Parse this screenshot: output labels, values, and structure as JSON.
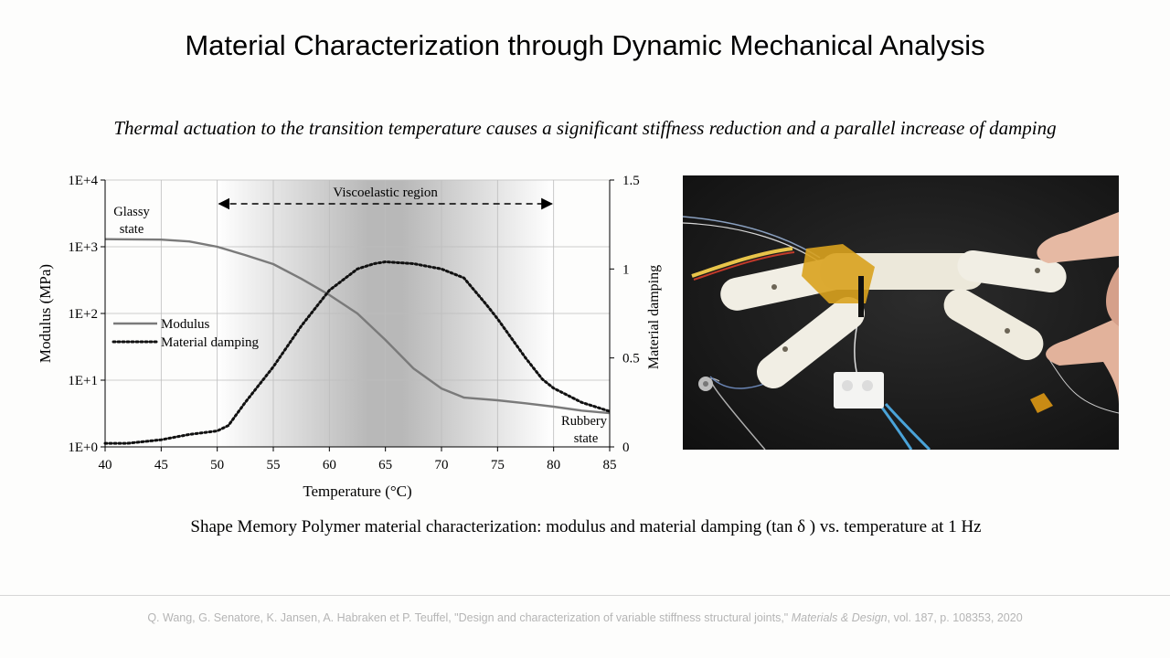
{
  "slide": {
    "title": "Material Characterization through Dynamic Mechanical Analysis",
    "subtitle": "Thermal actuation to the transition temperature causes a significant stiffness reduction and a parallel increase of damping",
    "caption": "Shape Memory Polymer material characterization: modulus and material damping (tan δ ) vs. temperature at 1 Hz",
    "citation": {
      "prefix": "Q. Wang, G. Senatore, K. Jansen, A. Habraken et P. Teuffel, \"Design and characterization of variable stiffness structural joints,\" ",
      "journal": "Materials & Design",
      "suffix": ", vol. 187, p. 108353, 2020"
    }
  },
  "chart_data": {
    "type": "line",
    "xlabel": "Temperature (°C)",
    "ylabel": "Modulus (MPa)",
    "y2label": "Material damping",
    "xlim": [
      40,
      85
    ],
    "x_ticks": [
      "40",
      "45",
      "50",
      "55",
      "60",
      "65",
      "70",
      "75",
      "80",
      "85"
    ],
    "ylim_log": [
      0,
      4
    ],
    "y_ticks": [
      "1E+0",
      "1E+1",
      "1E+2",
      "1E+3",
      "1E+4"
    ],
    "y2lim": [
      0,
      1.5
    ],
    "y2_ticks": [
      "0",
      "0.5",
      "1",
      "1.5"
    ],
    "grid": true,
    "legend_position": "middle-left",
    "annotations": {
      "region": "Viscoelastic region",
      "region_range": [
        50,
        80
      ],
      "glassy": [
        "Glassy",
        "state"
      ],
      "rubbery": [
        "Rubbery",
        "state"
      ]
    },
    "series": [
      {
        "name": "Modulus",
        "axis": "left-log",
        "color": "#7a7a7a",
        "x": [
          40,
          45,
          47.5,
          50,
          52.5,
          55,
          57.5,
          60,
          62.5,
          65,
          67.5,
          70,
          72,
          75,
          77.5,
          80,
          82.5,
          85
        ],
        "values": [
          1300,
          1280,
          1200,
          1000,
          750,
          550,
          330,
          190,
          100,
          40,
          15,
          7.5,
          5.5,
          5,
          4.5,
          4,
          3.5,
          3.2
        ]
      },
      {
        "name": "Material damping",
        "axis": "right",
        "color": "#111111",
        "x": [
          40,
          42,
          45,
          47.5,
          50,
          51,
          52.5,
          55,
          57.5,
          60,
          62.5,
          64,
          65,
          67.5,
          70,
          72,
          74,
          75,
          77.5,
          79,
          80,
          82.5,
          85
        ],
        "values": [
          0.02,
          0.02,
          0.04,
          0.07,
          0.09,
          0.12,
          0.25,
          0.45,
          0.68,
          0.88,
          1.0,
          1.03,
          1.04,
          1.03,
          1.0,
          0.95,
          0.8,
          0.72,
          0.5,
          0.38,
          0.33,
          0.25,
          0.2
        ]
      }
    ]
  }
}
